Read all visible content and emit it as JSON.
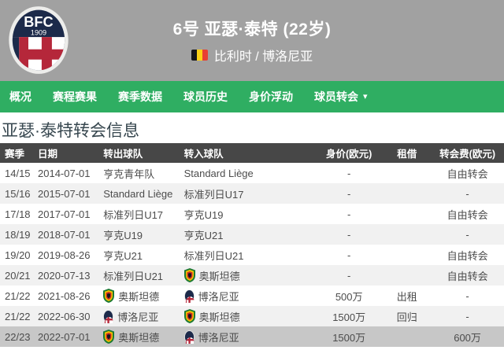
{
  "colors": {
    "header_bg": "#a1a1a1",
    "nav_bg": "#2fae62",
    "table_header_bg": "#474747",
    "row_alt_bg": "#f1f1f1",
    "row_highlight_bg": "#c7c7c7",
    "title_color": "#37474f"
  },
  "header": {
    "player_title": "6号 亚瑟·泰特 (22岁)",
    "nationality_club": "比利时 / 博洛尼亚",
    "flag_icon": "belgium-flag",
    "crest": {
      "abbr": "BFC",
      "year": "1909"
    }
  },
  "nav": {
    "items": [
      {
        "label": "概况"
      },
      {
        "label": "赛程赛果"
      },
      {
        "label": "赛季数据"
      },
      {
        "label": "球员历史"
      },
      {
        "label": "身价浮动"
      },
      {
        "label": "球员转会",
        "caret": "▾"
      }
    ]
  },
  "page": {
    "title": "亚瑟·泰特转会信息"
  },
  "table": {
    "headers": [
      "赛季",
      "日期",
      "转出球队",
      "转入球队",
      "身价(欧元)",
      "租借",
      "转会费(欧元)"
    ],
    "rows": [
      {
        "season": "14/15",
        "date": "2014-07-01",
        "from": {
          "name": "亨克青年队"
        },
        "to": {
          "name": "Standard Liège"
        },
        "value": "-",
        "loan": "",
        "fee": "自由转会"
      },
      {
        "season": "15/16",
        "date": "2015-07-01",
        "from": {
          "name": "Standard Liège"
        },
        "to": {
          "name": "标准列日U17"
        },
        "value": "-",
        "loan": "",
        "fee": "-"
      },
      {
        "season": "17/18",
        "date": "2017-07-01",
        "from": {
          "name": "标准列日U17"
        },
        "to": {
          "name": "亨克U19"
        },
        "value": "-",
        "loan": "",
        "fee": "自由转会"
      },
      {
        "season": "18/19",
        "date": "2018-07-01",
        "from": {
          "name": "亨克U19"
        },
        "to": {
          "name": "亨克U21"
        },
        "value": "-",
        "loan": "",
        "fee": "-"
      },
      {
        "season": "19/20",
        "date": "2019-08-26",
        "from": {
          "name": "亨克U21"
        },
        "to": {
          "name": "标准列日U21"
        },
        "value": "-",
        "loan": "",
        "fee": "自由转会"
      },
      {
        "season": "20/21",
        "date": "2020-07-13",
        "from": {
          "name": "标准列日U21"
        },
        "to": {
          "name": "奥斯坦德",
          "logo": "oostende"
        },
        "value": "-",
        "loan": "",
        "fee": "自由转会"
      },
      {
        "season": "21/22",
        "date": "2021-08-26",
        "from": {
          "name": "奥斯坦德",
          "logo": "oostende"
        },
        "to": {
          "name": "博洛尼亚",
          "logo": "bologna"
        },
        "value": "500万",
        "loan": "出租",
        "fee": "-"
      },
      {
        "season": "21/22",
        "date": "2022-06-30",
        "from": {
          "name": "博洛尼亚",
          "logo": "bologna"
        },
        "to": {
          "name": "奥斯坦德",
          "logo": "oostende"
        },
        "value": "1500万",
        "loan": "回归",
        "fee": "-"
      },
      {
        "season": "22/23",
        "date": "2022-07-01",
        "from": {
          "name": "奥斯坦德",
          "logo": "oostende"
        },
        "to": {
          "name": "博洛尼亚",
          "logo": "bologna"
        },
        "value": "1500万",
        "loan": "",
        "fee": "600万",
        "highlighted": true
      }
    ]
  }
}
